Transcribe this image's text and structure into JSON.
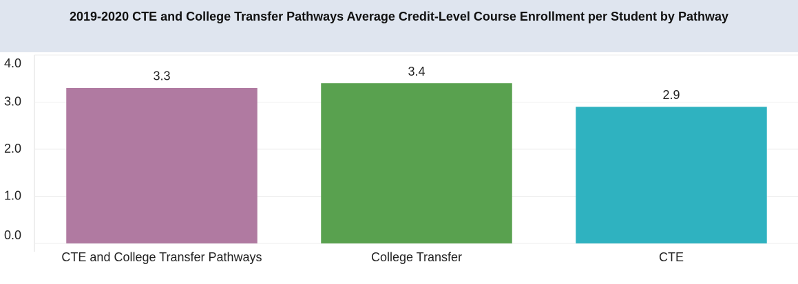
{
  "chart_data": {
    "type": "bar",
    "title": "2019-2020 CTE and College Transfer Pathways Average Credit-Level Course Enrollment per Student by Pathway",
    "categories": [
      "CTE and College Transfer Pathways",
      "College Transfer",
      "CTE"
    ],
    "values": [
      3.3,
      3.4,
      2.9
    ],
    "colors": [
      "#b07aa1",
      "#59a14f",
      "#2fb2c0"
    ],
    "ylim": [
      0,
      4
    ],
    "yticks": [
      {
        "value": 0,
        "label": "0.0"
      },
      {
        "value": 1,
        "label": "1.0"
      },
      {
        "value": 2,
        "label": "2.0"
      },
      {
        "value": 3,
        "label": "3.0"
      },
      {
        "value": 4,
        "label": "4.0"
      }
    ],
    "grid": true
  }
}
